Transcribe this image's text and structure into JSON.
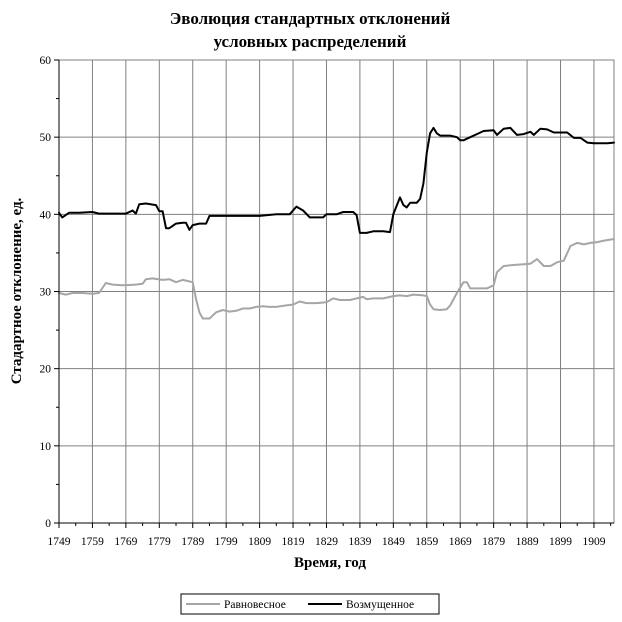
{
  "chart_data": {
    "type": "line",
    "title_line1": "Эволюция стандартных отклонений",
    "title_line2": "условных распределений",
    "xlabel": "Время, год",
    "ylabel": "Стадартное отклонение, ед.",
    "xlim": [
      1749,
      1915
    ],
    "ylim": [
      0,
      60
    ],
    "x_ticks": [
      "1749",
      "1759",
      "1769",
      "1779",
      "1789",
      "1799",
      "1809",
      "1819",
      "1829",
      "1839",
      "1849",
      "1859",
      "1869",
      "1879",
      "1889",
      "1899",
      "1909"
    ],
    "y_ticks": [
      "0",
      "10",
      "20",
      "30",
      "40",
      "50",
      "60"
    ],
    "grid": true,
    "legend_position": "bottom-center",
    "series": [
      {
        "name": "Равновесное",
        "color": "#a6a6a6",
        "points": [
          [
            1749,
            29.8
          ],
          [
            1751,
            29.6
          ],
          [
            1753,
            29.8
          ],
          [
            1756,
            29.8
          ],
          [
            1759,
            29.7
          ],
          [
            1761,
            29.8
          ],
          [
            1763,
            31.1
          ],
          [
            1765,
            30.9
          ],
          [
            1768,
            30.8
          ],
          [
            1772,
            30.9
          ],
          [
            1774,
            31.0
          ],
          [
            1775,
            31.6
          ],
          [
            1777,
            31.7
          ],
          [
            1780,
            31.5
          ],
          [
            1782,
            31.6
          ],
          [
            1784,
            31.2
          ],
          [
            1786,
            31.5
          ],
          [
            1789,
            31.2
          ],
          [
            1790,
            29.0
          ],
          [
            1791,
            27.3
          ],
          [
            1792,
            26.5
          ],
          [
            1794,
            26.5
          ],
          [
            1796,
            27.3
          ],
          [
            1798,
            27.6
          ],
          [
            1800,
            27.4
          ],
          [
            1802,
            27.5
          ],
          [
            1804,
            27.8
          ],
          [
            1806,
            27.8
          ],
          [
            1808,
            28.0
          ],
          [
            1810,
            28.1
          ],
          [
            1812,
            28.0
          ],
          [
            1814,
            28.0
          ],
          [
            1817,
            28.2
          ],
          [
            1819,
            28.3
          ],
          [
            1821,
            28.7
          ],
          [
            1823,
            28.5
          ],
          [
            1826,
            28.5
          ],
          [
            1829,
            28.6
          ],
          [
            1831,
            29.1
          ],
          [
            1833,
            28.9
          ],
          [
            1836,
            28.9
          ],
          [
            1838,
            29.1
          ],
          [
            1840,
            29.3
          ],
          [
            1841,
            29.0
          ],
          [
            1843,
            29.1
          ],
          [
            1846,
            29.1
          ],
          [
            1849,
            29.4
          ],
          [
            1851,
            29.5
          ],
          [
            1853,
            29.4
          ],
          [
            1855,
            29.6
          ],
          [
            1858,
            29.5
          ],
          [
            1859,
            29.4
          ],
          [
            1860,
            28.3
          ],
          [
            1861,
            27.7
          ],
          [
            1863,
            27.6
          ],
          [
            1865,
            27.7
          ],
          [
            1866,
            28.2
          ],
          [
            1868,
            29.8
          ],
          [
            1870,
            31.2
          ],
          [
            1871,
            31.2
          ],
          [
            1872,
            30.4
          ],
          [
            1875,
            30.4
          ],
          [
            1877,
            30.4
          ],
          [
            1879,
            30.8
          ],
          [
            1880,
            32.5
          ],
          [
            1882,
            33.3
          ],
          [
            1884,
            33.4
          ],
          [
            1887,
            33.5
          ],
          [
            1890,
            33.6
          ],
          [
            1892,
            34.2
          ],
          [
            1894,
            33.3
          ],
          [
            1896,
            33.3
          ],
          [
            1898,
            33.8
          ],
          [
            1900,
            34.0
          ],
          [
            1902,
            35.9
          ],
          [
            1904,
            36.3
          ],
          [
            1906,
            36.1
          ],
          [
            1908,
            36.3
          ],
          [
            1910,
            36.4
          ],
          [
            1912,
            36.6
          ],
          [
            1915,
            36.8
          ]
        ]
      },
      {
        "name": "Возмущенное",
        "color": "#000000",
        "points": [
          [
            1749,
            40.2
          ],
          [
            1750,
            39.6
          ],
          [
            1752,
            40.2
          ],
          [
            1755,
            40.2
          ],
          [
            1759,
            40.3
          ],
          [
            1761,
            40.1
          ],
          [
            1765,
            40.1
          ],
          [
            1769,
            40.1
          ],
          [
            1771,
            40.5
          ],
          [
            1772,
            40.1
          ],
          [
            1773,
            41.3
          ],
          [
            1775,
            41.4
          ],
          [
            1778,
            41.2
          ],
          [
            1779,
            40.4
          ],
          [
            1780,
            40.4
          ],
          [
            1781,
            38.2
          ],
          [
            1782,
            38.2
          ],
          [
            1784,
            38.8
          ],
          [
            1786,
            38.9
          ],
          [
            1787,
            38.9
          ],
          [
            1788,
            38.0
          ],
          [
            1789,
            38.6
          ],
          [
            1791,
            38.8
          ],
          [
            1793,
            38.8
          ],
          [
            1794,
            39.8
          ],
          [
            1799,
            39.8
          ],
          [
            1809,
            39.8
          ],
          [
            1814,
            40.0
          ],
          [
            1818,
            40.0
          ],
          [
            1820,
            41.0
          ],
          [
            1822,
            40.5
          ],
          [
            1824,
            39.6
          ],
          [
            1826,
            39.6
          ],
          [
            1828,
            39.6
          ],
          [
            1829,
            40.0
          ],
          [
            1832,
            40.0
          ],
          [
            1834,
            40.3
          ],
          [
            1837,
            40.3
          ],
          [
            1838,
            39.9
          ],
          [
            1839,
            37.6
          ],
          [
            1841,
            37.6
          ],
          [
            1843,
            37.8
          ],
          [
            1846,
            37.8
          ],
          [
            1848,
            37.7
          ],
          [
            1849,
            40.0
          ],
          [
            1851,
            42.2
          ],
          [
            1852,
            41.2
          ],
          [
            1853,
            40.9
          ],
          [
            1854,
            41.5
          ],
          [
            1856,
            41.5
          ],
          [
            1857,
            42.0
          ],
          [
            1858,
            44.0
          ],
          [
            1859,
            48.0
          ],
          [
            1860,
            50.5
          ],
          [
            1861,
            51.2
          ],
          [
            1862,
            50.5
          ],
          [
            1863,
            50.2
          ],
          [
            1866,
            50.2
          ],
          [
            1868,
            50.0
          ],
          [
            1869,
            49.6
          ],
          [
            1870,
            49.6
          ],
          [
            1872,
            50.0
          ],
          [
            1874,
            50.4
          ],
          [
            1876,
            50.8
          ],
          [
            1879,
            50.9
          ],
          [
            1880,
            50.3
          ],
          [
            1882,
            51.1
          ],
          [
            1884,
            51.2
          ],
          [
            1886,
            50.3
          ],
          [
            1888,
            50.4
          ],
          [
            1890,
            50.7
          ],
          [
            1891,
            50.3
          ],
          [
            1893,
            51.1
          ],
          [
            1895,
            51.0
          ],
          [
            1897,
            50.6
          ],
          [
            1899,
            50.6
          ],
          [
            1901,
            50.6
          ],
          [
            1903,
            49.9
          ],
          [
            1905,
            49.9
          ],
          [
            1907,
            49.3
          ],
          [
            1909,
            49.2
          ],
          [
            1911,
            49.2
          ],
          [
            1913,
            49.2
          ],
          [
            1915,
            49.3
          ]
        ]
      }
    ]
  }
}
